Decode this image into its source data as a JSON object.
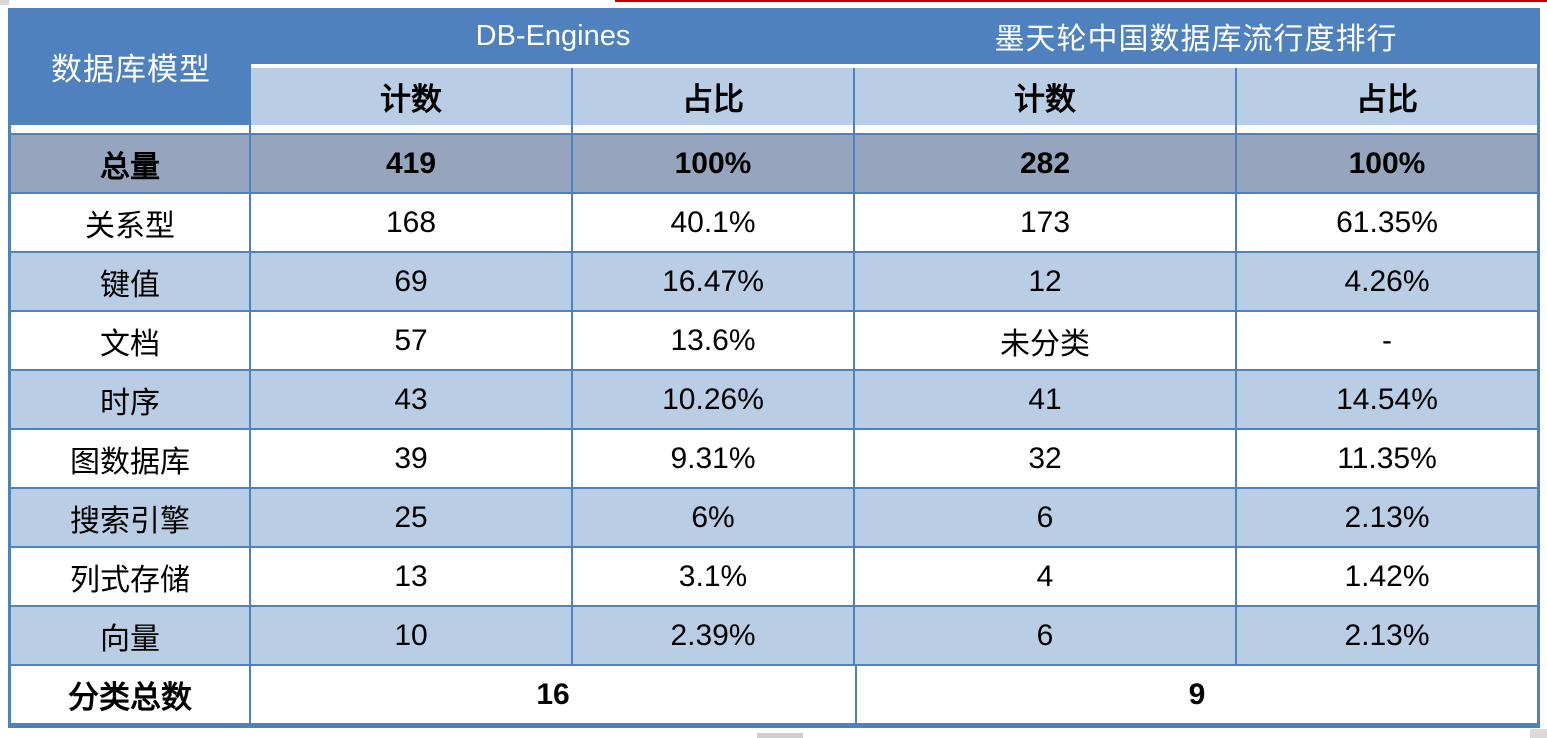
{
  "colors": {
    "header_blue": "#4E81BD",
    "subheader_light_blue": "#B9CDE5",
    "total_row_gray": "#96A5BE",
    "border_blue": "#4E81BD",
    "artifact_red_line": "#C00000"
  },
  "chart_data": {
    "type": "table",
    "corner_header": "数据库模型",
    "column_groups": [
      "DB-Engines",
      "墨天轮中国数据库流行度排行"
    ],
    "sub_headers": [
      "计数",
      "占比",
      "计数",
      "占比"
    ],
    "rows": [
      [
        "总量",
        "419",
        "100%",
        "282",
        "100%"
      ],
      [
        "关系型",
        "168",
        "40.1%",
        "173",
        "61.35%"
      ],
      [
        "键值",
        "69",
        "16.47%",
        "12",
        "4.26%"
      ],
      [
        "文档",
        "57",
        "13.6%",
        "未分类",
        "-"
      ],
      [
        "时序",
        "43",
        "10.26%",
        "41",
        "14.54%"
      ],
      [
        "图数据库",
        "39",
        "9.31%",
        "32",
        "11.35%"
      ],
      [
        "搜索引擎",
        "25",
        "6%",
        "6",
        "2.13%"
      ],
      [
        "列式存储",
        "13",
        "3.1%",
        "4",
        "1.42%"
      ],
      [
        "向量",
        "10",
        "2.39%",
        "6",
        "2.13%"
      ]
    ],
    "footer": [
      "分类总数",
      "16",
      "9"
    ]
  }
}
